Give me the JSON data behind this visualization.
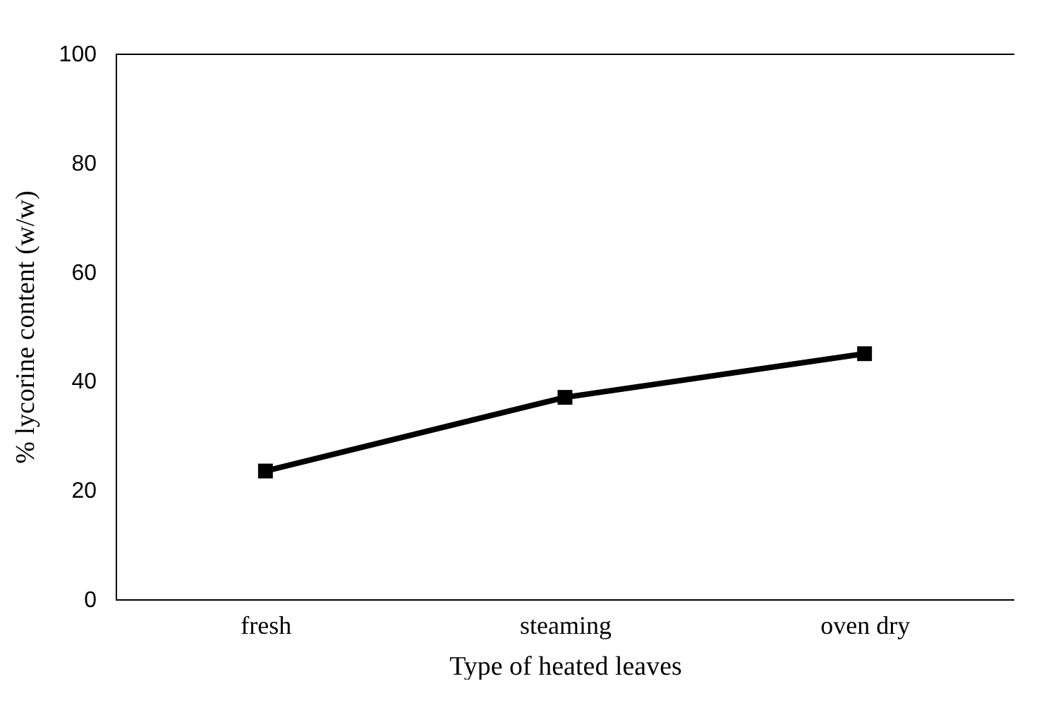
{
  "chart_data": {
    "type": "line",
    "xlabel": "Type of heated leaves",
    "ylabel": "% lycorine content (w/w)",
    "categories": [
      "fresh",
      "steaming",
      "oven dry"
    ],
    "series": [
      {
        "color": "#000000",
        "values": [
          23.5,
          37,
          45
        ]
      }
    ],
    "ylim": [
      0,
      100
    ],
    "yticks": [
      0,
      20,
      40,
      60,
      80,
      100
    ],
    "grid": false,
    "legend": false,
    "marker": "square",
    "line_style": "solid"
  }
}
